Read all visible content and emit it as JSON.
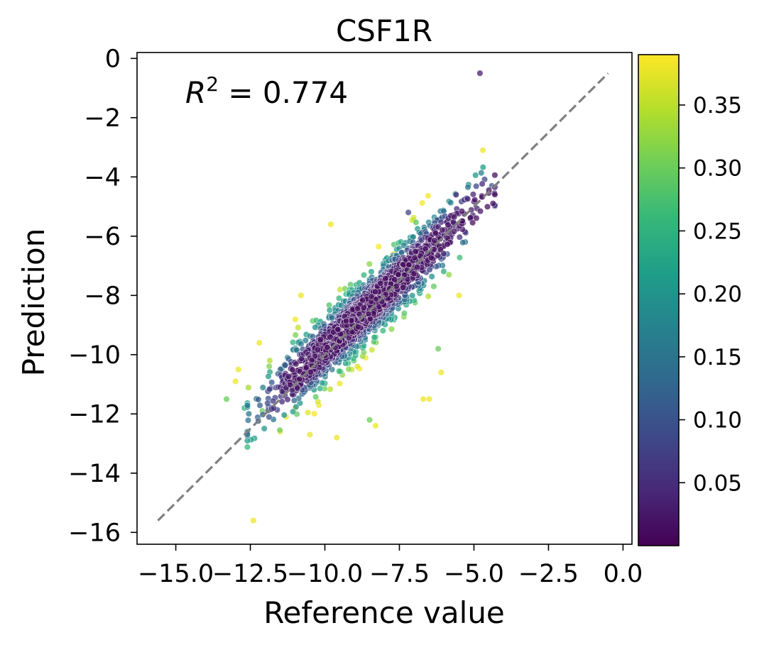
{
  "chart_data": {
    "type": "scatter",
    "title": "CSF1R",
    "xlabel": "Reference value",
    "ylabel": "Prediction",
    "annotation": {
      "label": "R",
      "superscript": "2",
      "text": " = 0.774"
    },
    "xlim": [
      -16.3,
      0.3
    ],
    "ylim": [
      -16.4,
      0.2
    ],
    "x_ticks": [
      -15.0,
      -12.5,
      -10.0,
      -7.5,
      -5.0,
      -2.5,
      0.0
    ],
    "x_tick_labels": [
      "−15.0",
      "−12.5",
      "−10.0",
      "−7.5",
      "−5.0",
      "−2.5",
      "0.0"
    ],
    "y_ticks": [
      0,
      -2,
      -4,
      -6,
      -8,
      -10,
      -12,
      -14,
      -16
    ],
    "y_tick_labels": [
      "0",
      "−2",
      "−4",
      "−6",
      "−8",
      "−10",
      "−12",
      "−14",
      "−16"
    ],
    "grid": false,
    "identity_line": {
      "x": [
        -15.6,
        -0.5
      ],
      "y": [
        -15.6,
        -0.5
      ],
      "color": "#808080",
      "style": "dashed"
    },
    "colorbar": {
      "colormap": "viridis",
      "range": [
        0.0,
        0.39
      ],
      "ticks": [
        0.05,
        0.1,
        0.15,
        0.2,
        0.25,
        0.3,
        0.35
      ],
      "tick_labels": [
        "0.05",
        "0.10",
        "0.15",
        "0.20",
        "0.25",
        "0.30",
        "0.35"
      ],
      "stops": [
        "#440154",
        "#482878",
        "#3e4989",
        "#31688e",
        "#26828e",
        "#1f9e89",
        "#35b779",
        "#6ece58",
        "#b5de2b",
        "#fde725"
      ]
    },
    "point_cloud": {
      "n": 1800,
      "center_x": -8.6,
      "slope": 0.95,
      "intercept": -0.3,
      "x_range": [
        -12.6,
        -4.3
      ],
      "residual_sd": 0.55
    },
    "outliers": [
      {
        "x": -4.8,
        "y": -0.5,
        "c": 0.03
      },
      {
        "x": -4.7,
        "y": -3.1,
        "c": 0.38
      },
      {
        "x": -12.4,
        "y": -15.6,
        "c": 0.38
      },
      {
        "x": -13.3,
        "y": -11.5,
        "c": 0.3
      },
      {
        "x": -9.8,
        "y": -5.6,
        "c": 0.38
      },
      {
        "x": -8.3,
        "y": -12.4,
        "c": 0.38
      },
      {
        "x": -8.5,
        "y": -12.2,
        "c": 0.3
      },
      {
        "x": -9.6,
        "y": -12.8,
        "c": 0.38
      },
      {
        "x": -10.5,
        "y": -12.7,
        "c": 0.38
      },
      {
        "x": -11.5,
        "y": -12.6,
        "c": 0.38
      },
      {
        "x": -12.1,
        "y": -11.9,
        "c": 0.3
      },
      {
        "x": -12.7,
        "y": -11.8,
        "c": 0.25
      },
      {
        "x": -6.7,
        "y": -11.5,
        "c": 0.38
      },
      {
        "x": -6.5,
        "y": -11.5,
        "c": 0.38
      },
      {
        "x": -6.1,
        "y": -10.6,
        "c": 0.38
      },
      {
        "x": -5.5,
        "y": -8.0,
        "c": 0.38
      },
      {
        "x": -4.4,
        "y": -4.3,
        "c": 0.1
      },
      {
        "x": -7.2,
        "y": -5.2,
        "c": 0.08
      },
      {
        "x": -5.6,
        "y": -4.6,
        "c": 0.05
      },
      {
        "x": -11.0,
        "y": -11.8,
        "c": 0.38
      },
      {
        "x": -12.9,
        "y": -10.5,
        "c": 0.38
      },
      {
        "x": -13.0,
        "y": -10.9,
        "c": 0.38
      },
      {
        "x": -12.2,
        "y": -9.6,
        "c": 0.38
      },
      {
        "x": -10.8,
        "y": -8.0,
        "c": 0.38
      },
      {
        "x": -7.7,
        "y": -6.6,
        "c": 0.38
      },
      {
        "x": -6.2,
        "y": -9.8,
        "c": 0.3
      },
      {
        "x": -11.3,
        "y": -12.1,
        "c": 0.38
      },
      {
        "x": -10.2,
        "y": -11.7,
        "c": 0.38
      }
    ]
  }
}
